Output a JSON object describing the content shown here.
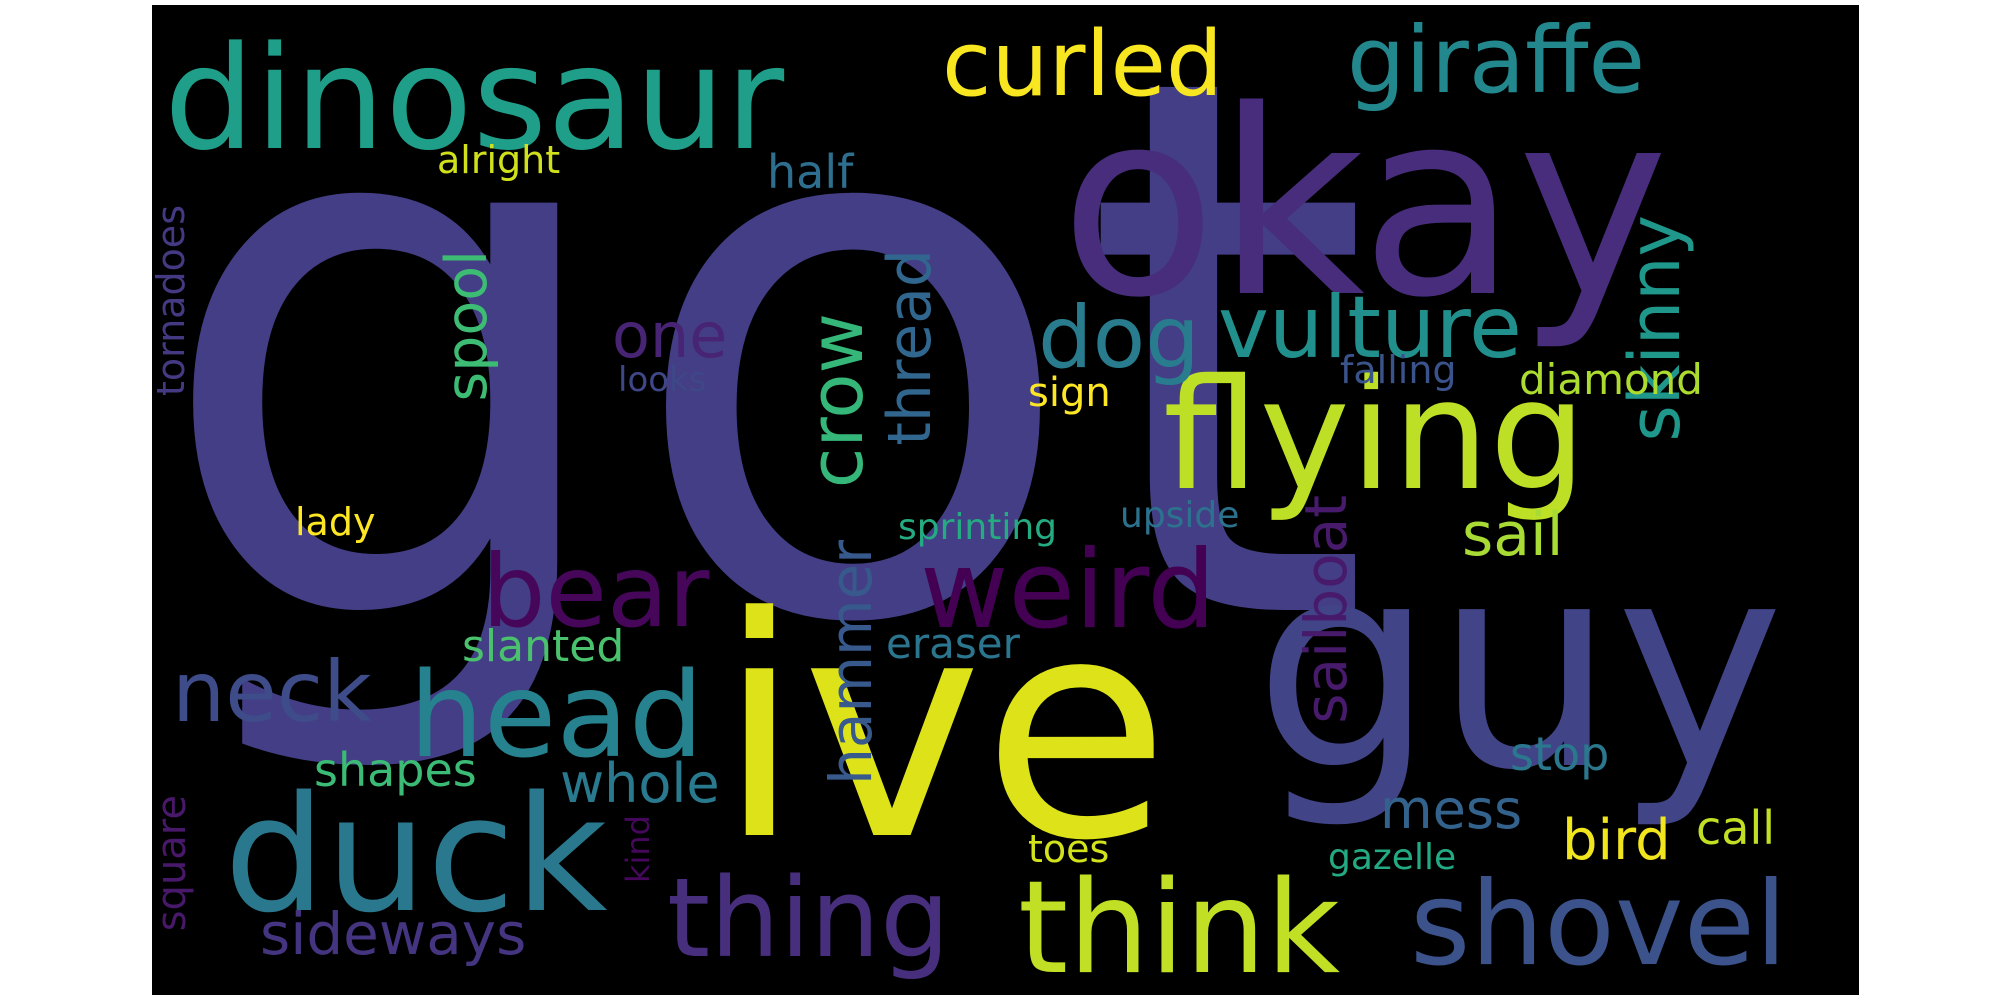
{
  "words": [
    {
      "text": "got",
      "color": "#433e85"
    },
    {
      "text": "okay",
      "color": "#472d7b"
    },
    {
      "text": "ive",
      "color": "#dde318"
    },
    {
      "text": "guy",
      "color": "#414487"
    },
    {
      "text": "dinosaur",
      "color": "#1f9e89"
    },
    {
      "text": "curled",
      "color": "#f8e621"
    },
    {
      "text": "giraffe",
      "color": "#23888e"
    },
    {
      "text": "flying",
      "color": "#bddf26"
    },
    {
      "text": "duck",
      "color": "#2a788e"
    },
    {
      "text": "think",
      "color": "#c0df25"
    },
    {
      "text": "shovel",
      "color": "#3b528b"
    },
    {
      "text": "head",
      "color": "#26828e"
    },
    {
      "text": "weird",
      "color": "#440154"
    },
    {
      "text": "bear",
      "color": "#46075a"
    },
    {
      "text": "thing",
      "color": "#472f7d"
    },
    {
      "text": "vulture",
      "color": "#21908d"
    },
    {
      "text": "dog",
      "color": "#287c8e"
    },
    {
      "text": "crow",
      "color": "#35b779"
    },
    {
      "text": "skinny",
      "color": "#1f978b"
    },
    {
      "text": "neck",
      "color": "#3e4c8a"
    },
    {
      "text": "hammer",
      "color": "#38598c"
    },
    {
      "text": "sailboat",
      "color": "#481a6c"
    },
    {
      "text": "thread",
      "color": "#31678e"
    },
    {
      "text": "spool",
      "color": "#3dbc74"
    },
    {
      "text": "one",
      "color": "#482475"
    },
    {
      "text": "sail",
      "color": "#a8db34"
    },
    {
      "text": "sideways",
      "color": "#453581"
    },
    {
      "text": "whole",
      "color": "#297a8e"
    },
    {
      "text": "mess",
      "color": "#33638d"
    },
    {
      "text": "bird",
      "color": "#f1e51d"
    },
    {
      "text": "half",
      "color": "#2e6e8e"
    },
    {
      "text": "alright",
      "color": "#d0e11c"
    },
    {
      "text": "tornadoes",
      "color": "#443a83"
    },
    {
      "text": "diamond",
      "color": "#addc30"
    },
    {
      "text": "sign",
      "color": "#fde725"
    },
    {
      "text": "falling",
      "color": "#3a538b"
    },
    {
      "text": "looks",
      "color": "#3f4788"
    },
    {
      "text": "lady",
      "color": "#fde725"
    },
    {
      "text": "sprinting",
      "color": "#25ab82"
    },
    {
      "text": "upside",
      "color": "#2c728e"
    },
    {
      "text": "eraser",
      "color": "#2b758e"
    },
    {
      "text": "slanted",
      "color": "#4ac16d"
    },
    {
      "text": "shapes",
      "color": "#3bbb75"
    },
    {
      "text": "stop",
      "color": "#2a778e"
    },
    {
      "text": "square",
      "color": "#48186a"
    },
    {
      "text": "kind",
      "color": "#46085c"
    },
    {
      "text": "toes",
      "color": "#d2e21b"
    },
    {
      "text": "gazelle",
      "color": "#24aa83"
    },
    {
      "text": "call",
      "color": "#c2df23"
    }
  ]
}
